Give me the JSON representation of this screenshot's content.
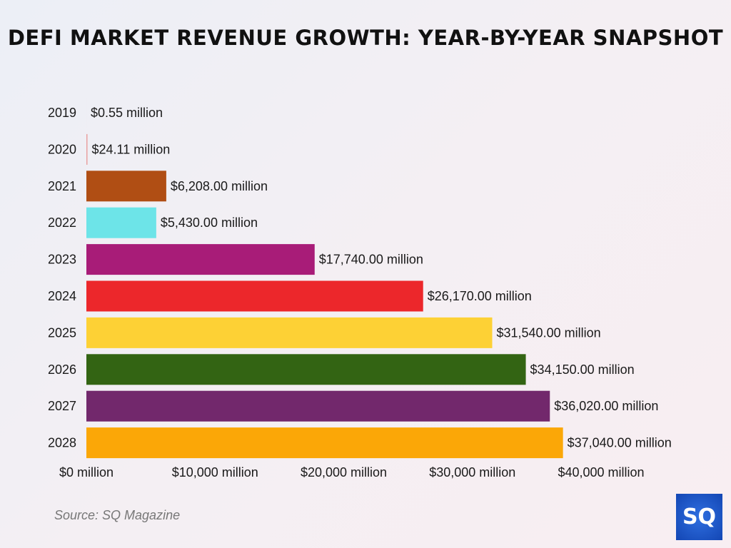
{
  "chart_data": {
    "type": "bar",
    "orientation": "horizontal",
    "title": "DEFI MARKET REVENUE GROWTH: YEAR-BY-YEAR SNAPSHOT",
    "categories": [
      "2019",
      "2020",
      "2021",
      "2022",
      "2023",
      "2024",
      "2025",
      "2026",
      "2027",
      "2028"
    ],
    "values": [
      0.55,
      24.11,
      6208.0,
      5430.0,
      17740.0,
      26170.0,
      31540.0,
      34150.0,
      36020.0,
      37040.0
    ],
    "data_labels": [
      "$0.55 million",
      "$24.11 million",
      "$6,208.00 million",
      "$5,430.00 million",
      "$17,740.00 million",
      "$26,170.00 million",
      "$31,540.00 million",
      "$34,150.00 million",
      "$36,020.00 million",
      "$37,040.00 million"
    ],
    "colors": [
      "#e8a0a0",
      "#e8a0a0",
      "#b04e14",
      "#6de4e8",
      "#a81c78",
      "#ec272b",
      "#fdd135",
      "#336413",
      "#72286c",
      "#fba707"
    ],
    "xlim": [
      0,
      40000
    ],
    "xticks": [
      0,
      10000,
      20000,
      30000,
      40000
    ],
    "xtick_labels": [
      "$0 million",
      "$10,000 million",
      "$20,000 million",
      "$30,000 million",
      "$40,000 million"
    ],
    "xlabel": "",
    "ylabel": "",
    "grid": false,
    "legend": "none"
  },
  "source": "Source: SQ Magazine",
  "logo_text": "SQ"
}
